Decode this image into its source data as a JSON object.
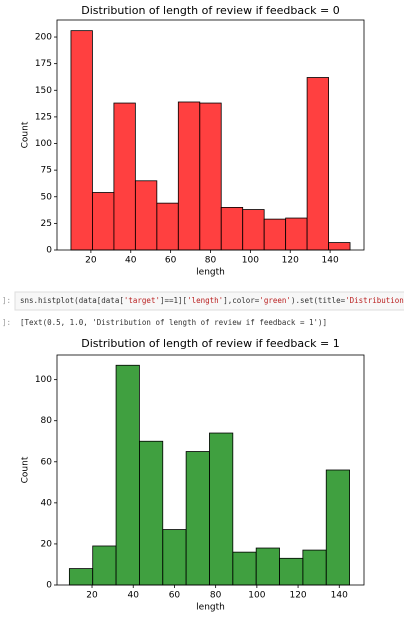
{
  "chart_data": [
    {
      "type": "histogram",
      "title": "Distribution of length of review if feedback = 0",
      "x_label": "length",
      "y_label": "Count",
      "color": "#ff0000",
      "bins": [
        10,
        20.77,
        31.54,
        42.31,
        53.08,
        63.85,
        74.62,
        85.38,
        96.15,
        106.92,
        117.69,
        128.46,
        139.23,
        150
      ],
      "values": [
        206,
        54,
        138,
        65,
        44,
        139,
        138,
        40,
        38,
        29,
        30,
        162,
        7
      ],
      "xlim": [
        3,
        157
      ],
      "xticks": [
        20,
        40,
        60,
        80,
        100,
        120,
        140
      ],
      "ylim": [
        0,
        216
      ],
      "yticks": [
        0,
        25,
        50,
        75,
        100,
        125,
        150,
        175,
        200
      ]
    },
    {
      "type": "histogram",
      "title": "Distribution of length of review if feedback = 1",
      "x_label": "length",
      "y_label": "Count",
      "color": "#008000",
      "bins": [
        9,
        20.33,
        31.67,
        43,
        54.33,
        65.67,
        77,
        88.33,
        99.67,
        111,
        122.33,
        133.67,
        145
      ],
      "values": [
        8,
        19,
        107,
        70,
        27,
        65,
        74,
        16,
        18,
        13,
        17,
        56
      ],
      "xlim": [
        3,
        152
      ],
      "xticks": [
        20,
        40,
        60,
        80,
        100,
        120,
        140
      ],
      "ylim": [
        0,
        112
      ],
      "yticks": [
        0,
        20,
        40,
        60,
        80,
        100
      ]
    }
  ],
  "cell": {
    "prompt_in": "]:",
    "code": [
      "sns.histplot(data[data[",
      "'target'",
      "]==1][",
      "'length'",
      "],color=",
      "'green'",
      ").set(title=",
      "'Distribution o"
    ],
    "prompt_out": "]:",
    "output": "[Text(0.5, 1.0, 'Distribution of length of review if feedback = 1')]"
  }
}
